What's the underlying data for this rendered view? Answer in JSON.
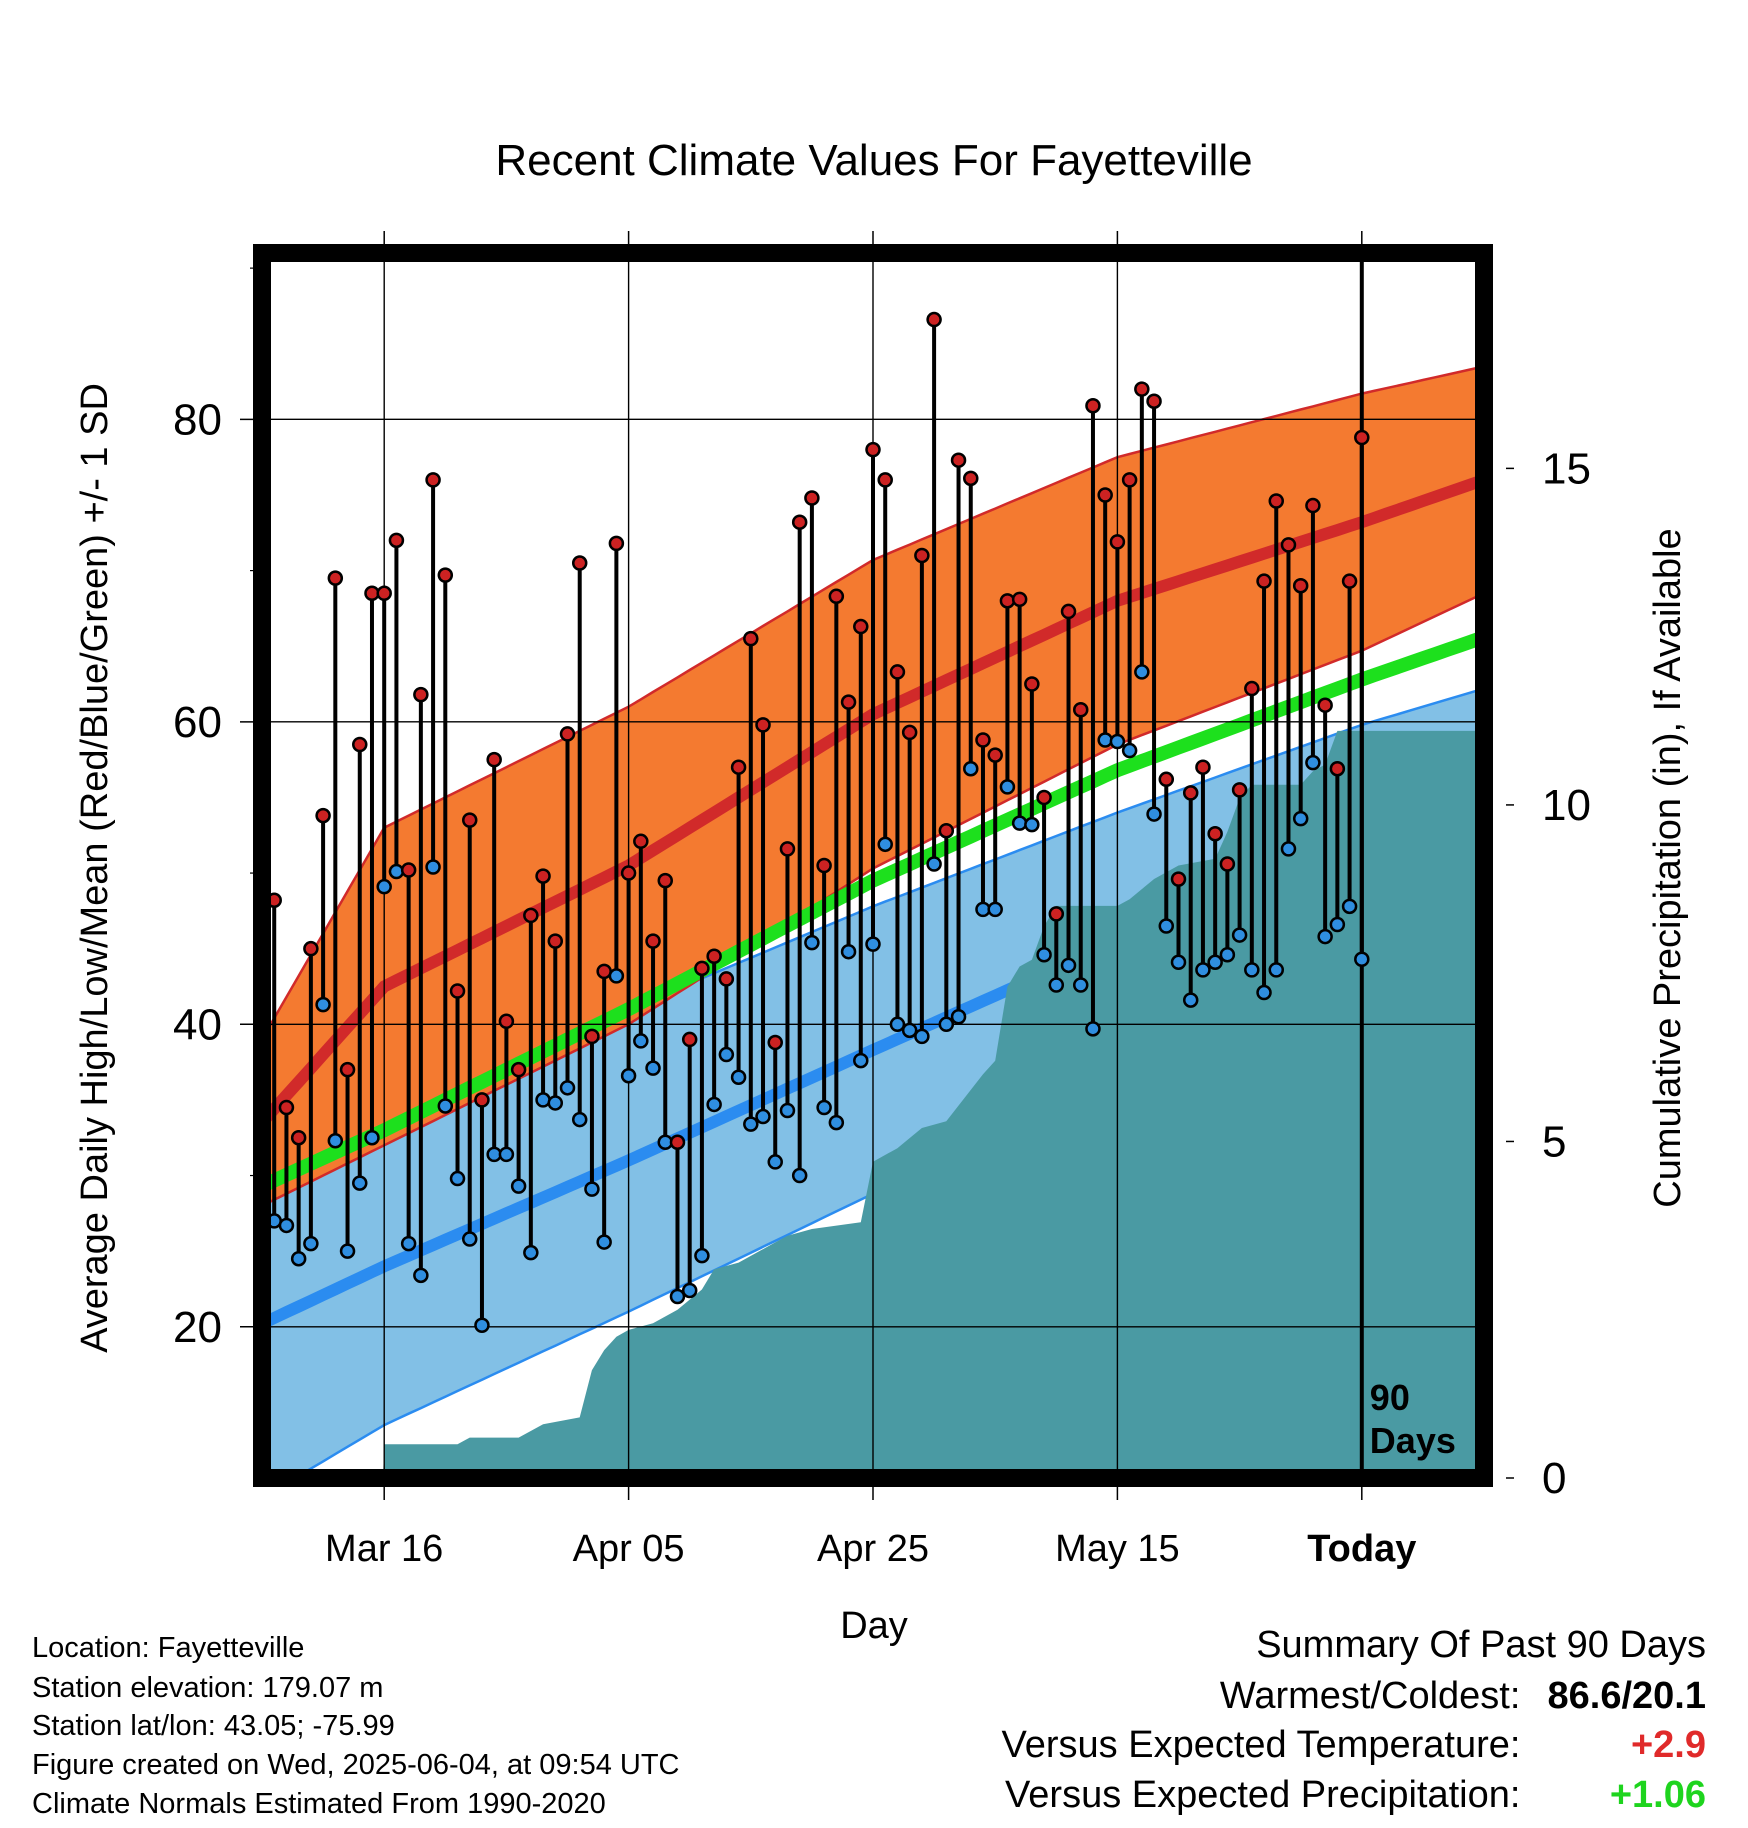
{
  "chart_data": {
    "type": "line",
    "title": "Recent Climate Values For Fayetteville",
    "xlabel": "Day",
    "ylabel": "Average Daily High/Low/Mean (Red/Blue/Green) +/- 1 SD",
    "y2label": "Cumulative Precipitation (in), If Available",
    "xlim": [
      -10,
      90
    ],
    "ylim": [
      10,
      91
    ],
    "y2lim": [
      0,
      18.2
    ],
    "x_ticks": [
      {
        "x": 0,
        "label": "Mar 16"
      },
      {
        "x": 20,
        "label": "Apr 05"
      },
      {
        "x": 40,
        "label": "Apr 25"
      },
      {
        "x": 60,
        "label": "May 15"
      },
      {
        "x": 80,
        "label": "Today"
      }
    ],
    "y_ticks": [
      20,
      40,
      60,
      80
    ],
    "y2_ticks": [
      0,
      5,
      10,
      15
    ],
    "today_x": 80,
    "today_label_line1": "90",
    "today_label_line2": "Days",
    "grid": true,
    "colors": {
      "high_band": "#f47a30",
      "high_line": "#d12a2a",
      "low_band": "#82c0e6",
      "low_line": "#2b8cf0",
      "mean_band": "#ffffff",
      "mean_line": "#1de01d",
      "precip": "#4a9aa3",
      "obs_high_marker": "#cc2222",
      "obs_low_marker": "#2f8ee0"
    },
    "normal_high": [
      {
        "x": -10,
        "mean": 33.5,
        "sd": 5.5
      },
      {
        "x": 0,
        "mean": 42.5,
        "sd": 10.5
      },
      {
        "x": 20,
        "mean": 50.5,
        "sd": 10.5
      },
      {
        "x": 40,
        "mean": 60.5,
        "sd": 10.2
      },
      {
        "x": 60,
        "mean": 68,
        "sd": 9.5
      },
      {
        "x": 80,
        "mean": 73.2,
        "sd": 8.5
      },
      {
        "x": 90,
        "mean": 76,
        "sd": 7.5
      }
    ],
    "normal_low": [
      {
        "x": -10,
        "mean": 20.2,
        "sd": 11.5
      },
      {
        "x": 0,
        "mean": 24,
        "sd": 10.5
      },
      {
        "x": 20,
        "mean": 31,
        "sd": 10
      },
      {
        "x": 40,
        "mean": 38.3,
        "sd": 9.5
      },
      {
        "x": 60,
        "mean": 45.5,
        "sd": 8.5
      },
      {
        "x": 80,
        "mean": 52.3,
        "sd": 7.5
      },
      {
        "x": 90,
        "mean": 55.5,
        "sd": 6.7
      }
    ],
    "normal_mean": [
      {
        "x": -10,
        "value": 29.3
      },
      {
        "x": 0,
        "value": 33
      },
      {
        "x": 20,
        "value": 41
      },
      {
        "x": 40,
        "value": 49.5
      },
      {
        "x": 60,
        "value": 56.8
      },
      {
        "x": 80,
        "value": 62.8
      },
      {
        "x": 90,
        "value": 65.6
      }
    ],
    "daily_high": [
      48.2,
      34.5,
      32.5,
      45,
      53.8,
      69.5,
      37,
      58.5,
      68.5,
      68.5,
      72,
      50.2,
      61.8,
      76,
      69.7,
      42.2,
      53.5,
      35,
      57.5,
      40.2,
      37,
      47.2,
      49.8,
      45.5,
      59.2,
      70.5,
      39.2,
      43.5,
      71.8,
      50,
      52.1,
      45.5,
      49.5,
      32.2,
      39,
      43.7,
      44.5,
      43,
      57,
      65.5,
      59.8,
      38.8,
      51.6,
      73.2,
      74.8,
      50.5,
      68.3,
      61.3,
      66.3,
      78,
      76,
      63.3,
      59.3,
      71,
      86.6,
      52.8,
      77.3,
      76.1,
      58.8,
      57.8,
      68,
      68.1,
      62.5,
      55,
      47.3,
      67.3,
      60.8,
      80.9,
      75,
      71.9,
      76,
      82,
      81.2,
      56.2,
      49.6,
      55.3,
      57,
      52.6,
      50.6,
      55.5,
      62.2,
      69.3,
      74.6,
      71.7,
      69,
      74.3,
      61.1,
      56.9,
      69.3,
      78.8
    ],
    "daily_low": [
      27,
      26.7,
      24.5,
      25.5,
      41.3,
      32.3,
      25,
      29.5,
      32.5,
      49.1,
      50.1,
      25.5,
      23.4,
      50.4,
      34.6,
      29.8,
      25.8,
      20.1,
      31.4,
      31.4,
      29.3,
      24.9,
      35,
      34.8,
      35.8,
      33.7,
      29.1,
      25.6,
      43.2,
      36.6,
      38.9,
      37.1,
      32.2,
      22,
      22.4,
      24.7,
      34.7,
      38,
      36.5,
      33.4,
      33.9,
      30.9,
      34.3,
      30,
      45.4,
      34.5,
      33.5,
      44.8,
      37.6,
      45.3,
      51.9,
      40,
      39.6,
      39.2,
      50.6,
      40,
      40.5,
      56.9,
      47.6,
      47.6,
      55.7,
      53.3,
      53.2,
      44.6,
      42.6,
      43.9,
      42.6,
      39.7,
      58.8,
      58.7,
      58.1,
      63.3,
      53.9,
      46.5,
      44.1,
      41.6,
      43.6,
      44.1,
      44.6,
      45.9,
      43.6,
      42.1,
      43.6,
      51.6,
      53.6,
      57.3,
      45.8,
      46.6,
      47.8,
      44.3
    ],
    "cumulative_precip": [
      {
        "x": -10,
        "value": 0
      },
      {
        "x": -0.1,
        "value": 0
      },
      {
        "x": 0,
        "value": 0.5
      },
      {
        "x": 6,
        "value": 0.5
      },
      {
        "x": 7,
        "value": 0.6
      },
      {
        "x": 11,
        "value": 0.6
      },
      {
        "x": 13,
        "value": 0.8
      },
      {
        "x": 16,
        "value": 0.9
      },
      {
        "x": 17,
        "value": 1.6
      },
      {
        "x": 18,
        "value": 1.9
      },
      {
        "x": 19,
        "value": 2.1
      },
      {
        "x": 20,
        "value": 2.2
      },
      {
        "x": 22,
        "value": 2.3
      },
      {
        "x": 24,
        "value": 2.5
      },
      {
        "x": 26,
        "value": 2.8
      },
      {
        "x": 27,
        "value": 3.1
      },
      {
        "x": 29,
        "value": 3.2
      },
      {
        "x": 30,
        "value": 3.3
      },
      {
        "x": 32,
        "value": 3.5
      },
      {
        "x": 33,
        "value": 3.6
      },
      {
        "x": 35,
        "value": 3.7
      },
      {
        "x": 39,
        "value": 3.8
      },
      {
        "x": 40,
        "value": 4.7
      },
      {
        "x": 42,
        "value": 4.9
      },
      {
        "x": 44,
        "value": 5.2
      },
      {
        "x": 46,
        "value": 5.3
      },
      {
        "x": 49,
        "value": 6
      },
      {
        "x": 50,
        "value": 6.2
      },
      {
        "x": 51,
        "value": 7.3
      },
      {
        "x": 52,
        "value": 7.6
      },
      {
        "x": 53,
        "value": 7.7
      },
      {
        "x": 54,
        "value": 8.2
      },
      {
        "x": 55,
        "value": 8.5
      },
      {
        "x": 60,
        "value": 8.5
      },
      {
        "x": 61,
        "value": 8.6
      },
      {
        "x": 63,
        "value": 8.9
      },
      {
        "x": 65,
        "value": 9.1
      },
      {
        "x": 68,
        "value": 9.2
      },
      {
        "x": 69,
        "value": 9.6
      },
      {
        "x": 70,
        "value": 10.1
      },
      {
        "x": 71,
        "value": 10.3
      },
      {
        "x": 73,
        "value": 10.3
      },
      {
        "x": 75,
        "value": 10.3
      },
      {
        "x": 76,
        "value": 10.5
      },
      {
        "x": 77,
        "value": 10.6
      },
      {
        "x": 78,
        "value": 11.1
      },
      {
        "x": 80,
        "value": 11.1
      },
      {
        "x": 90,
        "value": 11.1
      }
    ]
  },
  "info": {
    "location": "Location: Fayetteville",
    "elevation": "Station elevation: 179.07 m",
    "latlon": "Station lat/lon: 43.05; -75.99",
    "created": "Figure created on Wed, 2025-06-04, at 09:54 UTC",
    "normals": "Climate Normals Estimated From 1990-2020"
  },
  "summary": {
    "title": "Summary Of Past 90 Days",
    "warmest_label": "Warmest/Coldest:",
    "warmest_value": "86.6/20.1",
    "temp_label": "Versus Expected Temperature:",
    "temp_value": "+2.9",
    "temp_color": "#e02a2a",
    "precip_label": "Versus Expected Precipitation:",
    "precip_value": "+1.06",
    "precip_color": "#1ed41e"
  }
}
